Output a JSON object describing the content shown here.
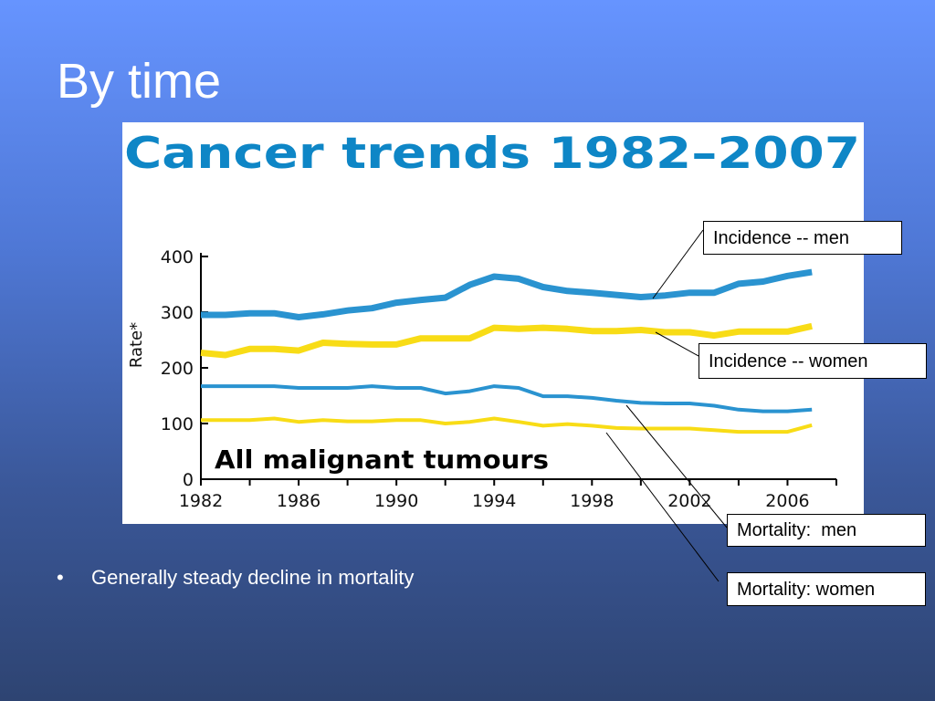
{
  "slide": {
    "title": "By time",
    "bullets": [
      {
        "marker": "•",
        "text": "Generally steady decline in mortality"
      }
    ]
  },
  "colors": {
    "men": "#2a93d0",
    "women": "#f8dc16",
    "title_blue": "#0e86c6"
  },
  "callouts": {
    "incidence_men": "Incidence -- men",
    "incidence_women": "Incidence -- women",
    "mortality_men": "Mortality:  men",
    "mortality_women": "Mortality: women"
  },
  "chart_data": {
    "type": "line",
    "title": "Cancer trends 1982–2007",
    "annotation": "All malignant tumours",
    "ylabel": "Rate*",
    "xlabel": "",
    "x": [
      1982,
      1983,
      1984,
      1985,
      1986,
      1987,
      1988,
      1989,
      1990,
      1991,
      1992,
      1993,
      1994,
      1995,
      1996,
      1997,
      1998,
      1999,
      2000,
      2001,
      2002,
      2003,
      2004,
      2005,
      2006,
      2007
    ],
    "xlim": [
      1982,
      2008
    ],
    "ylim": [
      0,
      400
    ],
    "x_ticks": [
      "1982",
      "1986",
      "1990",
      "1994",
      "1998",
      "2002",
      "2006"
    ],
    "y_ticks": [
      "0",
      "100",
      "200",
      "300",
      "400"
    ],
    "grid": false,
    "series": [
      {
        "name": "Incidence -- men",
        "color": "#2a93d0",
        "width": "thick",
        "values": [
          295,
          295,
          298,
          298,
          291,
          296,
          303,
          307,
          317,
          322,
          326,
          349,
          364,
          360,
          345,
          338,
          335,
          331,
          327,
          330,
          335,
          335,
          351,
          355,
          365,
          372
        ]
      },
      {
        "name": "Incidence -- women",
        "color": "#f8dc16",
        "width": "thick",
        "values": [
          227,
          223,
          234,
          234,
          231,
          245,
          243,
          242,
          242,
          253,
          253,
          253,
          272,
          270,
          272,
          270,
          266,
          266,
          268,
          264,
          264,
          258,
          265,
          265,
          265,
          275
        ]
      },
      {
        "name": "Mortality:  men",
        "color": "#2a93d0",
        "width": "thin",
        "values": [
          167,
          167,
          167,
          167,
          164,
          164,
          164,
          167,
          164,
          164,
          154,
          158,
          167,
          164,
          149,
          149,
          146,
          141,
          137,
          136,
          136,
          132,
          125,
          122,
          122,
          125
        ]
      },
      {
        "name": "Mortality: women",
        "color": "#f8dc16",
        "width": "thin",
        "values": [
          106,
          106,
          106,
          109,
          103,
          106,
          104,
          104,
          106,
          106,
          100,
          103,
          109,
          103,
          96,
          99,
          96,
          92,
          91,
          91,
          91,
          88,
          85,
          85,
          85,
          97
        ]
      }
    ]
  }
}
